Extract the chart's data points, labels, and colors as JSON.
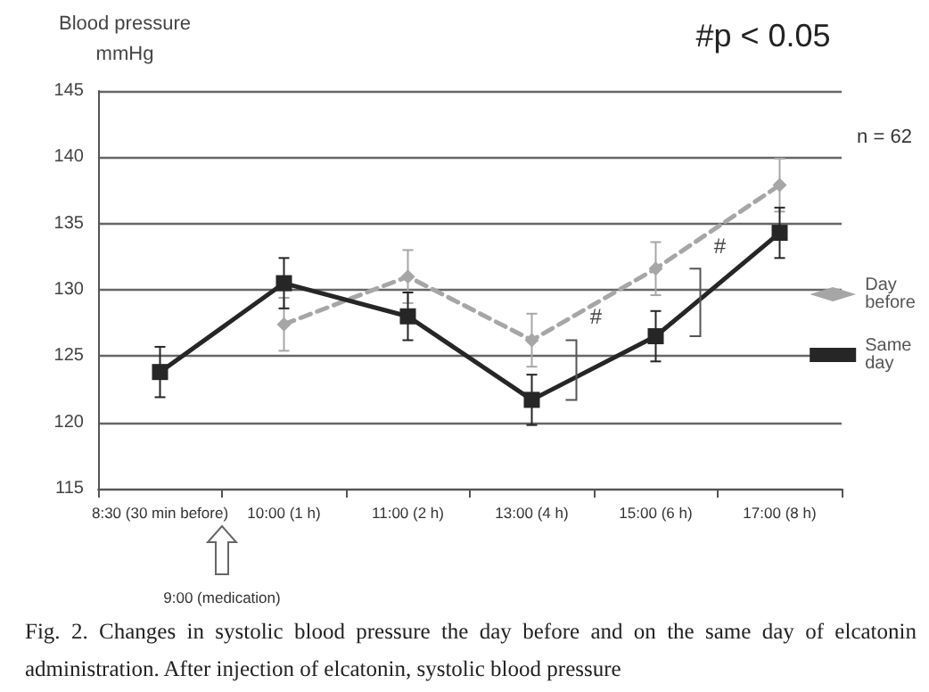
{
  "chart_data": {
    "type": "line",
    "ylabel": "Blood pressure\nmmHg",
    "categories": [
      "8:30 (30 min before)",
      "10:00 (1 h)",
      "11:00 (2 h)",
      "13:00 (4 h)",
      "15:00 (6 h)",
      "17:00 (8 h)"
    ],
    "series": [
      {
        "name": "Day before",
        "color": "#a6a6a6",
        "marker": "diamond",
        "line_style": "dashed",
        "values": [
          null,
          127.4,
          131.0,
          126.2,
          131.6,
          137.9
        ],
        "errors": [
          null,
          2.0,
          2.0,
          2.0,
          2.0,
          2.0
        ]
      },
      {
        "name": "Same day",
        "color": "#262626",
        "marker": "square",
        "line_style": "solid",
        "values": [
          123.8,
          130.5,
          128.0,
          121.7,
          126.5,
          134.3
        ],
        "errors": [
          1.9,
          1.9,
          1.8,
          1.9,
          1.9,
          1.9
        ]
      }
    ],
    "ylim": [
      115,
      145
    ],
    "yticks": [
      115,
      120,
      125,
      130,
      135,
      140,
      145
    ],
    "grid": "y",
    "legend": "right",
    "annotations": [
      "#p < 0.05",
      "n = 62",
      {
        "text": "#",
        "x": "13:00 (4 h)",
        "y": 128
      },
      {
        "text": "#",
        "x": "15:00 (6 h)",
        "y": 133.3
      },
      "9:00 (medication)",
      "Fig. 2.  Changes in systolic blood pressure the day before and on the same day of elcatonin administration. After injection of elcatonin, systolic blood pressure"
    ]
  }
}
